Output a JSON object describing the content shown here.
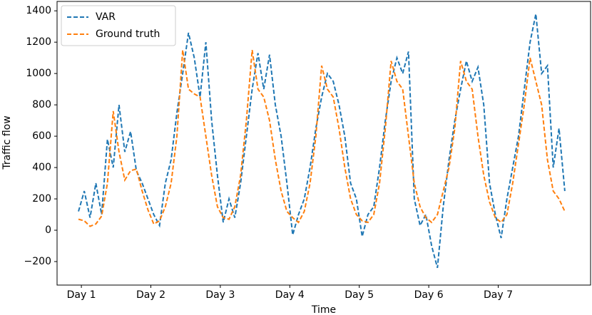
{
  "chart_data": {
    "type": "line",
    "x_label": "Time",
    "y_label": "Traffic flow",
    "x": [
      -1,
      1,
      3,
      5,
      7,
      9,
      11,
      13,
      15,
      17,
      19,
      21,
      23,
      25,
      27,
      29,
      31,
      33,
      35,
      37,
      39,
      41,
      43,
      45,
      47,
      49,
      51,
      53,
      55,
      57,
      59,
      61,
      63,
      65,
      67,
      69,
      71,
      73,
      75,
      77,
      79,
      81,
      83,
      85,
      87,
      89,
      91,
      93,
      95,
      97,
      99,
      101,
      103,
      105,
      107,
      109,
      111,
      113,
      115,
      117,
      119,
      121,
      123,
      125,
      127,
      129,
      131,
      133,
      135,
      137,
      139,
      141,
      143,
      145,
      147,
      149,
      151,
      153,
      155,
      157,
      159,
      161,
      163,
      165,
      167
    ],
    "series": [
      {
        "name": "VAR",
        "color": "#1f77b4",
        "values": [
          120,
          250,
          80,
          300,
          100,
          580,
          400,
          800,
          500,
          630,
          380,
          300,
          200,
          100,
          30,
          300,
          450,
          750,
          1000,
          1260,
          1100,
          850,
          1200,
          700,
          350,
          50,
          200,
          80,
          300,
          600,
          900,
          1130,
          900,
          1120,
          800,
          600,
          300,
          -30,
          100,
          200,
          400,
          650,
          850,
          1000,
          950,
          800,
          600,
          300,
          200,
          -40,
          100,
          150,
          400,
          700,
          950,
          1100,
          1000,
          1140,
          200,
          30,
          100,
          -100,
          -240,
          150,
          450,
          700,
          900,
          1080,
          950,
          1040,
          800,
          300,
          100,
          -50,
          200,
          400,
          600,
          900,
          1200,
          1380,
          1000,
          1050,
          400,
          650,
          250
        ]
      },
      {
        "name": "Ground truth",
        "color": "#ff7f0e",
        "values": [
          70,
          60,
          25,
          40,
          90,
          300,
          760,
          500,
          320,
          380,
          390,
          250,
          130,
          40,
          60,
          150,
          300,
          600,
          1150,
          900,
          870,
          850,
          600,
          350,
          150,
          80,
          70,
          150,
          350,
          700,
          1150,
          900,
          850,
          700,
          450,
          250,
          120,
          80,
          50,
          120,
          300,
          600,
          1050,
          900,
          850,
          650,
          400,
          200,
          100,
          60,
          50,
          100,
          300,
          650,
          1080,
          950,
          900,
          600,
          300,
          150,
          80,
          50,
          100,
          250,
          400,
          650,
          1080,
          950,
          900,
          600,
          350,
          180,
          80,
          50,
          100,
          300,
          550,
          800,
          1100,
          950,
          800,
          450,
          250,
          200,
          120
        ]
      }
    ],
    "xlim": [
      -8.4,
      175.9
    ],
    "xticks": [
      {
        "value": 0,
        "label": "Day 1"
      },
      {
        "value": 24,
        "label": "Day 2"
      },
      {
        "value": 48,
        "label": "Day 3"
      },
      {
        "value": 72,
        "label": "Day 4"
      },
      {
        "value": 96,
        "label": "Day 5"
      },
      {
        "value": 120,
        "label": "Day 6"
      },
      {
        "value": 144,
        "label": "Day 7"
      }
    ],
    "ylim": [
      -350,
      1460
    ],
    "yticks": [
      {
        "value": -200,
        "label": "−200"
      },
      0,
      200,
      400,
      600,
      800,
      1000,
      1200,
      1400
    ],
    "legend": "upper left",
    "dashed": true
  }
}
